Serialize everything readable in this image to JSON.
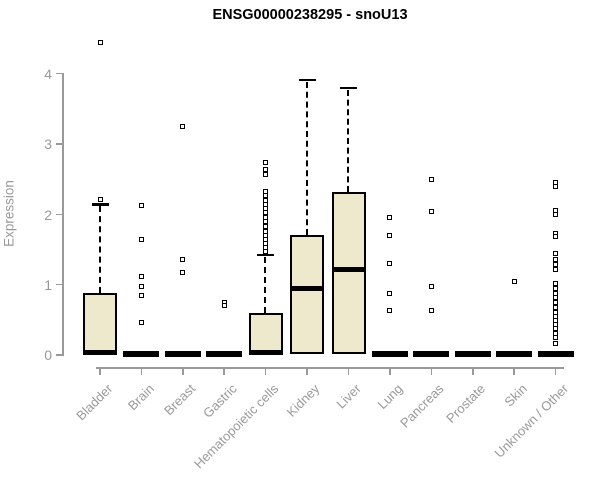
{
  "page": {
    "title": "ENSG00000238295 - snoU13"
  },
  "chart_data": {
    "type": "boxplot",
    "title": "ENSG00000238295 - snoU13",
    "xlabel": "",
    "ylabel": "Expression",
    "ylim": [
      0,
      4.6
    ],
    "yticks": [
      0,
      1,
      2,
      3,
      4
    ],
    "grid": false,
    "legend": false,
    "box_fill_color": "#EEE8CD",
    "box_border_color": "#000000",
    "axis_color": "#999999",
    "tick_label_color": "#999999",
    "title_color": "#000000",
    "categories": [
      "Bladder",
      "Brain",
      "Breast",
      "Gastric",
      "Hematopoietic cells",
      "Kidney",
      "Liver",
      "Lung",
      "Pancreas",
      "Prostate",
      "Skin",
      "Unknown / Other"
    ],
    "series": [
      {
        "category": "Bladder",
        "q1": 0,
        "median": 0.02,
        "q3": 0.87,
        "whisker_low": 0,
        "whisker_high": 2.13,
        "outliers": [
          4.43,
          2.2
        ]
      },
      {
        "category": "Brain",
        "q1": 0,
        "median": 0.01,
        "q3": 0,
        "whisker_low": 0,
        "whisker_high": 0,
        "outliers": [
          2.11,
          1.63,
          1.11,
          0.97,
          0.83,
          0.45
        ]
      },
      {
        "category": "Breast",
        "q1": 0,
        "median": 0.01,
        "q3": 0,
        "whisker_low": 0,
        "whisker_high": 0,
        "outliers": [
          3.24,
          1.35,
          1.16
        ]
      },
      {
        "category": "Gastric",
        "q1": 0,
        "median": 0.01,
        "q3": 0,
        "whisker_low": 0,
        "whisker_high": 0,
        "outliers": [
          0.73,
          0.7
        ]
      },
      {
        "category": "Hematopoietic cells",
        "q1": 0,
        "median": 0.02,
        "q3": 0.58,
        "whisker_low": 0,
        "whisker_high": 1.41,
        "outliers": [
          2.73,
          2.63,
          2.55,
          2.31,
          2.25,
          2.19,
          2.13,
          2.07,
          2.01,
          1.95,
          1.89,
          1.81,
          1.75,
          1.69,
          1.63,
          1.57,
          1.51,
          1.46
        ]
      },
      {
        "category": "Kidney",
        "q1": 0.01,
        "median": 0.93,
        "q3": 1.7,
        "whisker_low": 0.01,
        "whisker_high": 3.9,
        "outliers": []
      },
      {
        "category": "Liver",
        "q1": 0.01,
        "median": 1.21,
        "q3": 2.31,
        "whisker_low": 0.01,
        "whisker_high": 3.78,
        "outliers": []
      },
      {
        "category": "Lung",
        "q1": 0,
        "median": 0.01,
        "q3": 0,
        "whisker_low": 0,
        "whisker_high": 0,
        "outliers": [
          1.95,
          1.69,
          1.29,
          0.87,
          0.62
        ]
      },
      {
        "category": "Pancreas",
        "q1": 0,
        "median": 0.01,
        "q3": 0,
        "whisker_low": 0,
        "whisker_high": 0,
        "outliers": [
          2.49,
          2.03,
          0.97,
          0.62
        ]
      },
      {
        "category": "Prostate",
        "q1": 0,
        "median": 0.01,
        "q3": 0,
        "whisker_low": 0,
        "whisker_high": 0,
        "outliers": []
      },
      {
        "category": "Skin",
        "q1": 0,
        "median": 0.01,
        "q3": 0,
        "whisker_low": 0,
        "whisker_high": 0,
        "outliers": [
          1.03
        ]
      },
      {
        "category": "Unknown / Other",
        "q1": 0,
        "median": 0.01,
        "q3": 0,
        "whisker_low": 0,
        "whisker_high": 0,
        "outliers": [
          2.44,
          2.38,
          2.04,
          1.98,
          1.72,
          1.67,
          1.43,
          1.34,
          1.27,
          1.2,
          1.01,
          0.94,
          0.87,
          0.8,
          0.73,
          0.66,
          0.6,
          0.54,
          0.48,
          0.42,
          0.36,
          0.3,
          0.24,
          0.16
        ]
      }
    ]
  }
}
